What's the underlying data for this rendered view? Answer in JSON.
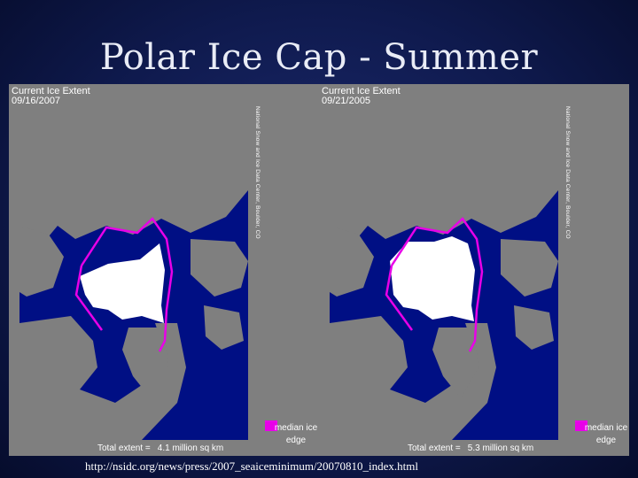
{
  "slide": {
    "title": "Polar Ice Cap - Summer",
    "source_url": "http://nsidc.org/news/press/2007_seaiceminimum/20070810_index.html"
  },
  "colors": {
    "background": "#0f1a4e",
    "ocean": "#000f84",
    "land": "#7f7f7f",
    "ice": "#ffffff",
    "median_edge": "#e800e8"
  },
  "panels": [
    {
      "heading": "Current Ice Extent",
      "date": "09/16/2007",
      "credit": "National Snow and Ice Data Center, Boulder, CO",
      "legend_label": "median ice edge",
      "total_label": "Total extent =",
      "total_value": "4.1 million sq km"
    },
    {
      "heading": "Current Ice Extent",
      "date": "09/21/2005",
      "credit": "National Snow and Ice Data Center, Boulder, CO",
      "legend_label": "median ice edge",
      "total_label": "Total extent =",
      "total_value": "5.3 million sq km"
    }
  ]
}
